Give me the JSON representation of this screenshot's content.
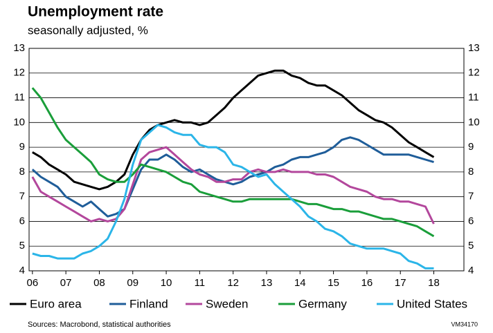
{
  "chart_data": {
    "type": "line",
    "title": "Unemployment rate",
    "subtitle": "seasonally adjusted, %",
    "source": "Sources: Macrobond, statistical authorities",
    "note": "VM34170",
    "x": [
      2006,
      2006.25,
      2006.5,
      2006.75,
      2007,
      2007.25,
      2007.5,
      2007.75,
      2008,
      2008.25,
      2008.5,
      2008.75,
      2009,
      2009.25,
      2009.5,
      2009.75,
      2010,
      2010.25,
      2010.5,
      2010.75,
      2011,
      2011.25,
      2011.5,
      2011.75,
      2012,
      2012.25,
      2012.5,
      2012.75,
      2013,
      2013.25,
      2013.5,
      2013.75,
      2014,
      2014.25,
      2014.5,
      2014.75,
      2015,
      2015.25,
      2015.5,
      2015.75,
      2016,
      2016.25,
      2016.5,
      2016.75,
      2017,
      2017.25,
      2017.5,
      2017.75,
      2018
    ],
    "xlim": [
      2005.9,
      2018.9
    ],
    "xticks": [
      {
        "value": 2006,
        "label": "06"
      },
      {
        "value": 2007,
        "label": "07"
      },
      {
        "value": 2008,
        "label": "08"
      },
      {
        "value": 2009,
        "label": "09"
      },
      {
        "value": 2010,
        "label": "10"
      },
      {
        "value": 2011,
        "label": "11"
      },
      {
        "value": 2012,
        "label": "12"
      },
      {
        "value": 2013,
        "label": "13"
      },
      {
        "value": 2014,
        "label": "14"
      },
      {
        "value": 2015,
        "label": "15"
      },
      {
        "value": 2016,
        "label": "16"
      },
      {
        "value": 2017,
        "label": "17"
      },
      {
        "value": 2018,
        "label": "18"
      }
    ],
    "ylim": [
      4,
      13
    ],
    "yticks": [
      4,
      5,
      6,
      7,
      8,
      9,
      10,
      11,
      12,
      13
    ],
    "grid": true,
    "series": [
      {
        "name": "Euro area",
        "color": "#000000",
        "values": [
          8.8,
          8.6,
          8.3,
          8.1,
          7.9,
          7.6,
          7.5,
          7.4,
          7.3,
          7.4,
          7.6,
          7.9,
          8.7,
          9.3,
          9.7,
          9.9,
          10.0,
          10.1,
          10.0,
          10.0,
          9.9,
          10.0,
          10.3,
          10.6,
          11.0,
          11.3,
          11.6,
          11.9,
          12.0,
          12.1,
          12.1,
          11.9,
          11.8,
          11.6,
          11.5,
          11.5,
          11.3,
          11.1,
          10.8,
          10.5,
          10.3,
          10.1,
          10.0,
          9.8,
          9.5,
          9.2,
          9.0,
          8.8,
          8.6
        ]
      },
      {
        "name": "Finland",
        "color": "#1f5d99",
        "values": [
          8.1,
          7.8,
          7.6,
          7.4,
          7.0,
          6.8,
          6.6,
          6.8,
          6.5,
          6.2,
          6.3,
          6.5,
          7.3,
          8.1,
          8.5,
          8.5,
          8.7,
          8.5,
          8.2,
          8.0,
          8.1,
          7.9,
          7.7,
          7.6,
          7.5,
          7.6,
          7.8,
          7.9,
          8.0,
          8.2,
          8.3,
          8.5,
          8.6,
          8.6,
          8.7,
          8.8,
          9.0,
          9.3,
          9.4,
          9.3,
          9.1,
          8.9,
          8.7,
          8.7,
          8.7,
          8.7,
          8.6,
          8.5,
          8.4
        ]
      },
      {
        "name": "Sweden",
        "color": "#b3479c",
        "values": [
          7.8,
          7.2,
          7.0,
          6.8,
          6.6,
          6.4,
          6.2,
          6.0,
          6.1,
          6.0,
          6.1,
          6.5,
          7.5,
          8.5,
          8.8,
          8.9,
          9.0,
          8.7,
          8.4,
          8.1,
          7.9,
          7.8,
          7.6,
          7.6,
          7.7,
          7.7,
          8.0,
          8.1,
          8.0,
          8.0,
          8.1,
          8.0,
          8.0,
          8.0,
          7.9,
          7.9,
          7.8,
          7.6,
          7.4,
          7.3,
          7.2,
          7.0,
          6.9,
          6.9,
          6.8,
          6.8,
          6.7,
          6.6,
          5.9
        ]
      },
      {
        "name": "Germany",
        "color": "#1a9e3a",
        "values": [
          11.4,
          11.0,
          10.4,
          9.8,
          9.3,
          9.0,
          8.7,
          8.4,
          7.9,
          7.7,
          7.6,
          7.6,
          7.9,
          8.3,
          8.2,
          8.1,
          8.0,
          7.8,
          7.6,
          7.5,
          7.2,
          7.1,
          7.0,
          6.9,
          6.8,
          6.8,
          6.9,
          6.9,
          6.9,
          6.9,
          6.9,
          6.9,
          6.8,
          6.7,
          6.7,
          6.6,
          6.5,
          6.5,
          6.4,
          6.4,
          6.3,
          6.2,
          6.1,
          6.1,
          6.0,
          5.9,
          5.8,
          5.6,
          5.4
        ]
      },
      {
        "name": "United States",
        "color": "#2bb5e8",
        "values": [
          4.7,
          4.6,
          4.6,
          4.5,
          4.5,
          4.5,
          4.7,
          4.8,
          5.0,
          5.3,
          6.0,
          6.9,
          8.3,
          9.3,
          9.6,
          9.9,
          9.8,
          9.6,
          9.5,
          9.5,
          9.1,
          9.0,
          9.0,
          8.8,
          8.3,
          8.2,
          8.0,
          7.8,
          7.9,
          7.5,
          7.2,
          6.9,
          6.6,
          6.2,
          6.0,
          5.7,
          5.6,
          5.4,
          5.1,
          5.0,
          4.9,
          4.9,
          4.9,
          4.8,
          4.7,
          4.4,
          4.3,
          4.1,
          4.1
        ]
      }
    ]
  }
}
